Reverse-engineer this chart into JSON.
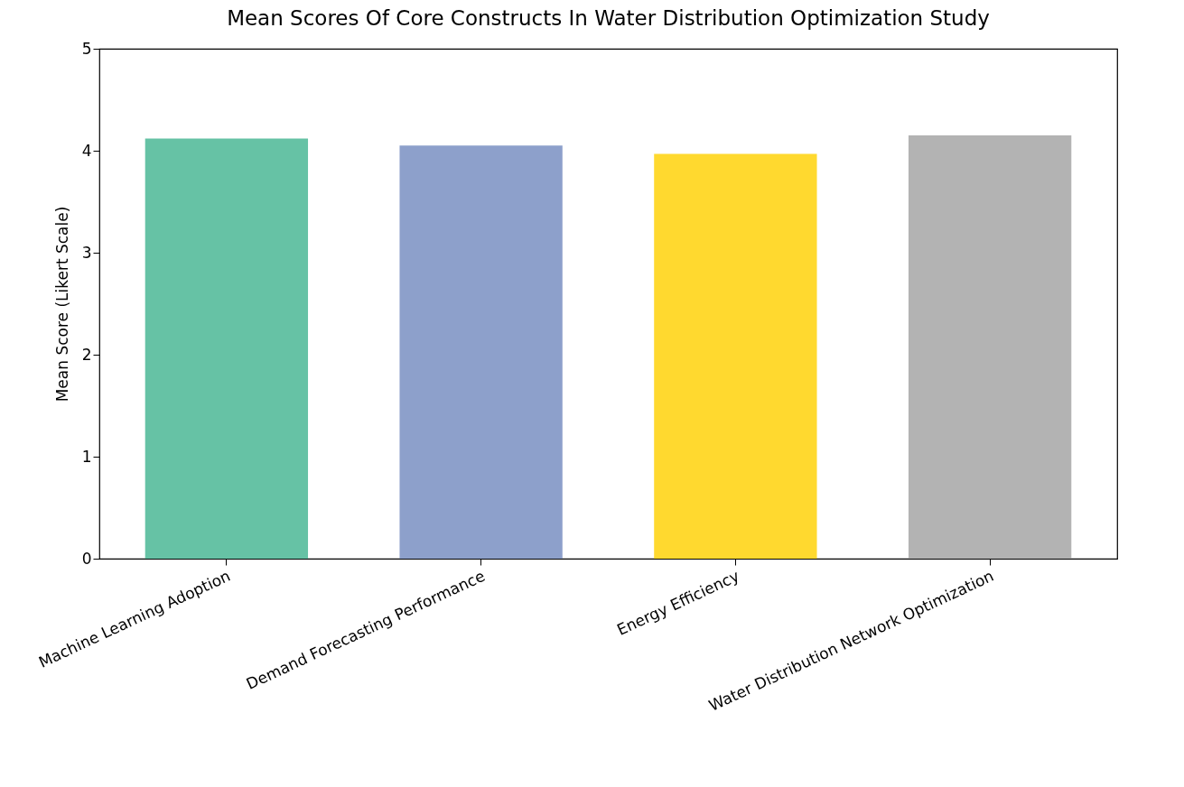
{
  "chart_data": {
    "type": "bar",
    "title": "Mean Scores Of Core Constructs In Water Distribution Optimization Study",
    "ylabel": "Mean Score (Likert Scale)",
    "categories": [
      "Machine Learning Adoption",
      "Demand Forecasting Performance",
      "Energy Efficiency",
      "Water Distribution Network Optimization"
    ],
    "values": [
      4.12,
      4.05,
      3.97,
      4.15
    ],
    "colors": [
      "#66c2a5",
      "#8da0cb",
      "#ffd92f",
      "#b3b3b3"
    ],
    "ylim": [
      0,
      5
    ],
    "yticks": [
      0,
      1,
      2,
      3,
      4,
      5
    ],
    "grid": false,
    "legend": false
  }
}
